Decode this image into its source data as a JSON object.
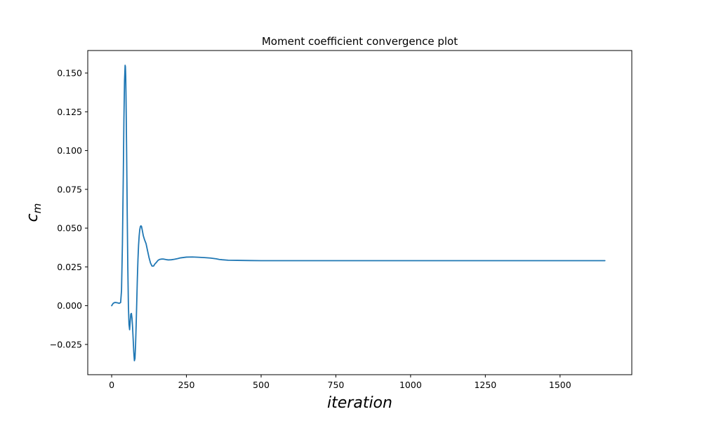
{
  "chart_data": {
    "type": "line",
    "title": "Moment coefficient convergence plot",
    "xlabel": "iteration",
    "ylabel": {
      "base": "c",
      "subscript": "m"
    },
    "xlim": [
      -80,
      1740
    ],
    "ylim": [
      -0.0445,
      0.1645
    ],
    "grid": false,
    "x_ticks": [
      0,
      250,
      500,
      750,
      1000,
      1250,
      1500
    ],
    "x_tick_labels": [
      "0",
      "250",
      "500",
      "750",
      "1000",
      "1250",
      "1500"
    ],
    "y_ticks": [
      -0.025,
      0.0,
      0.025,
      0.05,
      0.075,
      0.1,
      0.125,
      0.15
    ],
    "y_tick_labels": [
      "−0.025",
      "0.000",
      "0.025",
      "0.050",
      "0.075",
      "0.100",
      "0.125",
      "0.150"
    ],
    "series": [
      {
        "color": "#1f77b4",
        "x": [
          0,
          5,
          10,
          15,
          20,
          25,
          30,
          33,
          36,
          39,
          41,
          43,
          45,
          46,
          47,
          48,
          50,
          52,
          54,
          56,
          58,
          60,
          62,
          64,
          66,
          68,
          70,
          72,
          74,
          76,
          78,
          80,
          82,
          84,
          86,
          88,
          90,
          92,
          94,
          96,
          98,
          100,
          103,
          106,
          110,
          115,
          120,
          125,
          130,
          135,
          140,
          145,
          150,
          155,
          160,
          165,
          170,
          175,
          180,
          185,
          190,
          200,
          210,
          220,
          230,
          250,
          270,
          290,
          310,
          330,
          350,
          360,
          370,
          390,
          420,
          460,
          500,
          550,
          600,
          700,
          800,
          900,
          1000,
          1100,
          1200,
          1300,
          1400,
          1500,
          1600,
          1650
        ],
        "y": [
          0.0,
          0.0015,
          0.002,
          0.002,
          0.0018,
          0.0015,
          0.002,
          0.01,
          0.04,
          0.085,
          0.12,
          0.145,
          0.155,
          0.154,
          0.148,
          0.135,
          0.1,
          0.06,
          0.025,
          0.0,
          -0.012,
          -0.0155,
          -0.01,
          -0.0055,
          -0.005,
          -0.008,
          -0.014,
          -0.022,
          -0.03,
          -0.0355,
          -0.034,
          -0.025,
          -0.012,
          0.003,
          0.018,
          0.03,
          0.039,
          0.045,
          0.049,
          0.051,
          0.0515,
          0.051,
          0.048,
          0.045,
          0.0425,
          0.04,
          0.0355,
          0.031,
          0.0275,
          0.0255,
          0.0255,
          0.027,
          0.028,
          0.0292,
          0.0298,
          0.03,
          0.0301,
          0.03,
          0.0298,
          0.0296,
          0.0295,
          0.0296,
          0.0299,
          0.0303,
          0.0308,
          0.0313,
          0.0314,
          0.0312,
          0.031,
          0.0307,
          0.0302,
          0.0298,
          0.0296,
          0.0293,
          0.0292,
          0.0291,
          0.029,
          0.029,
          0.029,
          0.029,
          0.029,
          0.029,
          0.029,
          0.029,
          0.029,
          0.029,
          0.029,
          0.029,
          0.029,
          0.029
        ]
      }
    ]
  }
}
